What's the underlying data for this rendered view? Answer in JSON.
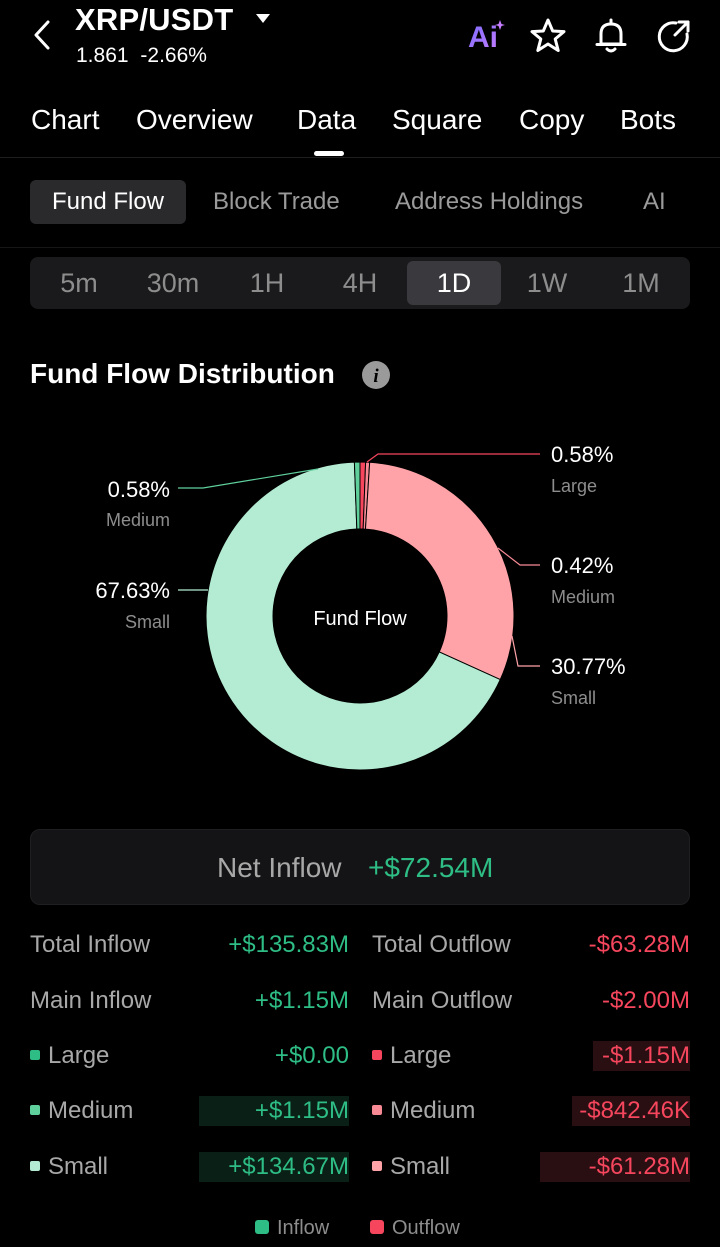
{
  "header": {
    "pair": "XRP/USDT",
    "price": "1.861",
    "change": "-2.66%"
  },
  "tabs": [
    "Chart",
    "Overview",
    "Data",
    "Square",
    "Copy",
    "Bots"
  ],
  "subtabs": [
    "Fund Flow",
    "Block Trade",
    "Address Holdings",
    "AI"
  ],
  "periods": [
    "5m",
    "30m",
    "1H",
    "4H",
    "1D",
    "1W",
    "1M"
  ],
  "section": {
    "title": "Fund Flow Distribution"
  },
  "chart_data": {
    "type": "pie",
    "center_label": "Fund Flow",
    "slices": [
      {
        "group": "Outflow",
        "label": "Large",
        "pct": 0.58,
        "color": "#f6465d"
      },
      {
        "group": "Outflow",
        "label": "Medium",
        "pct": 0.42,
        "color": "#f88a96"
      },
      {
        "group": "Outflow",
        "label": "Small",
        "pct": 30.77,
        "color": "#ffa3a8"
      },
      {
        "group": "Inflow",
        "label": "Small",
        "pct": 67.63,
        "color": "#b3ecd3"
      },
      {
        "group": "Inflow",
        "label": "Medium",
        "pct": 0.58,
        "color": "#5fcf9c"
      },
      {
        "group": "Inflow",
        "label": "Large",
        "pct": 0.0,
        "color": "#2ebd85"
      }
    ],
    "labels": {
      "out_large_pct": "0.58%",
      "out_large_name": "Large",
      "out_medium_pct": "0.42%",
      "out_medium_name": "Medium",
      "out_small_pct": "30.77%",
      "out_small_name": "Small",
      "in_medium_pct": "0.58%",
      "in_medium_name": "Medium",
      "in_small_pct": "67.63%",
      "in_small_name": "Small"
    }
  },
  "net": {
    "label": "Net Inflow",
    "value": "+$72.54M"
  },
  "inflow": {
    "total_label": "Total Inflow",
    "total": "+$135.83M",
    "main_label": "Main Inflow",
    "main": "+$1.15M",
    "large_label": "Large",
    "large": "+$0.00",
    "medium_label": "Medium",
    "medium": "+$1.15M",
    "small_label": "Small",
    "small": "+$134.67M"
  },
  "outflow": {
    "total_label": "Total Outflow",
    "total": "-$63.28M",
    "main_label": "Main Outflow",
    "main": "-$2.00M",
    "large_label": "Large",
    "large": "-$1.15M",
    "medium_label": "Medium",
    "medium": "-$842.46K",
    "small_label": "Small",
    "small": "-$61.28M"
  },
  "legend": {
    "inflow": "Inflow",
    "outflow": "Outflow"
  },
  "colors": {
    "green": "#2ebd85",
    "red": "#f6465d",
    "inflow_medium": "#5fcf9c",
    "inflow_small": "#b3ecd3",
    "outflow_medium": "#f88a96",
    "outflow_small": "#ffa3a8",
    "ai_gradient_start": "#7b6cff",
    "ai_gradient_end": "#c77dff"
  }
}
